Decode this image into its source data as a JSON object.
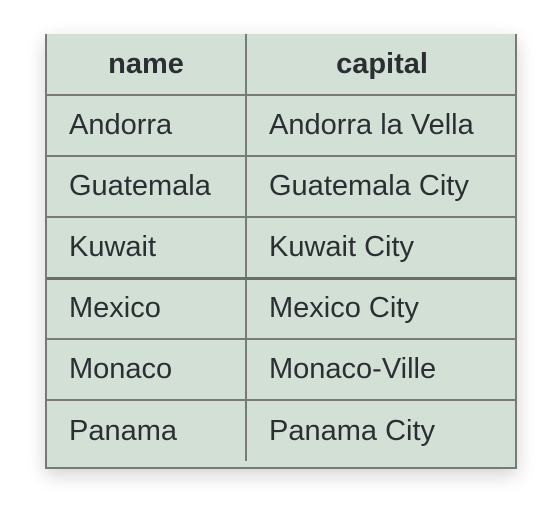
{
  "table": {
    "headers": [
      "name",
      "capital"
    ],
    "rows": [
      [
        "Andorra",
        "Andorra la Vella"
      ],
      [
        "Guatemala",
        "Guatemala City"
      ],
      [
        "Kuwait",
        "Kuwait City"
      ],
      [
        "Mexico",
        "Mexico City"
      ],
      [
        "Monaco",
        "Monaco-Ville"
      ],
      [
        "Panama",
        "Panama City"
      ]
    ]
  }
}
